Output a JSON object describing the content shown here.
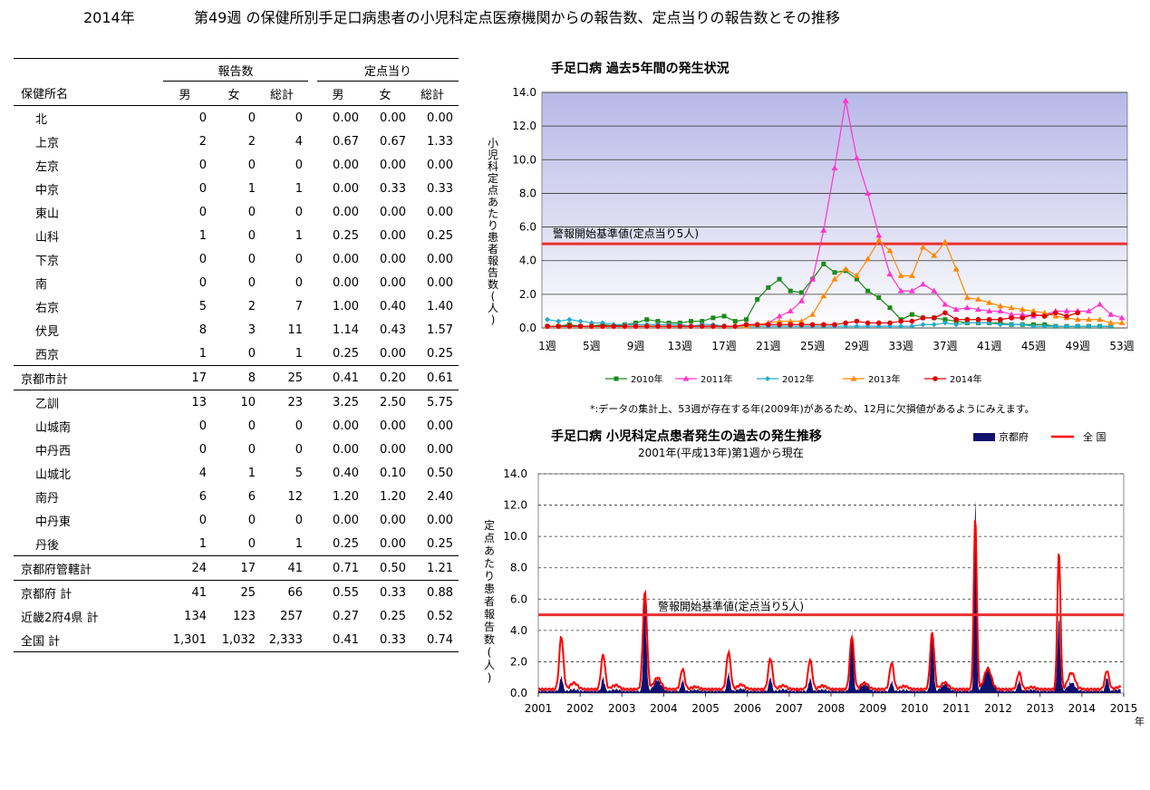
{
  "header": {
    "year": "2014年",
    "title": "第49週 の保健所別手足口病患者の小児科定点医療機関からの報告数、定点当りの報告数とその推移"
  },
  "table": {
    "group_reports": "報告数",
    "group_per_site": "定点当り",
    "col_name": "保健所名",
    "col_male": "男",
    "col_female": "女",
    "col_total": "総計",
    "rows": [
      {
        "name": "北",
        "m": "0",
        "f": "0",
        "t": "0",
        "pm": "0.00",
        "pf": "0.00",
        "pt": "0.00",
        "indent": true
      },
      {
        "name": "上京",
        "m": "2",
        "f": "2",
        "t": "4",
        "pm": "0.67",
        "pf": "0.67",
        "pt": "1.33",
        "indent": true
      },
      {
        "name": "左京",
        "m": "0",
        "f": "0",
        "t": "0",
        "pm": "0.00",
        "pf": "0.00",
        "pt": "0.00",
        "indent": true
      },
      {
        "name": "中京",
        "m": "0",
        "f": "1",
        "t": "1",
        "pm": "0.00",
        "pf": "0.33",
        "pt": "0.33",
        "indent": true
      },
      {
        "name": "東山",
        "m": "0",
        "f": "0",
        "t": "0",
        "pm": "0.00",
        "pf": "0.00",
        "pt": "0.00",
        "indent": true
      },
      {
        "name": "山科",
        "m": "1",
        "f": "0",
        "t": "1",
        "pm": "0.25",
        "pf": "0.00",
        "pt": "0.25",
        "indent": true
      },
      {
        "name": "下京",
        "m": "0",
        "f": "0",
        "t": "0",
        "pm": "0.00",
        "pf": "0.00",
        "pt": "0.00",
        "indent": true
      },
      {
        "name": "南",
        "m": "0",
        "f": "0",
        "t": "0",
        "pm": "0.00",
        "pf": "0.00",
        "pt": "0.00",
        "indent": true
      },
      {
        "name": "右京",
        "m": "5",
        "f": "2",
        "t": "7",
        "pm": "1.00",
        "pf": "0.40",
        "pt": "1.40",
        "indent": true
      },
      {
        "name": "伏見",
        "m": "8",
        "f": "3",
        "t": "11",
        "pm": "1.14",
        "pf": "0.43",
        "pt": "1.57",
        "indent": true
      },
      {
        "name": "西京",
        "m": "1",
        "f": "0",
        "t": "1",
        "pm": "0.25",
        "pf": "0.00",
        "pt": "0.25",
        "indent": true
      },
      {
        "name": "京都市計",
        "m": "17",
        "f": "8",
        "t": "25",
        "pm": "0.41",
        "pf": "0.20",
        "pt": "0.61",
        "indent": false,
        "line_above": true,
        "line_below": true
      },
      {
        "name": "乙訓",
        "m": "13",
        "f": "10",
        "t": "23",
        "pm": "3.25",
        "pf": "2.50",
        "pt": "5.75",
        "indent": true
      },
      {
        "name": "山城南",
        "m": "0",
        "f": "0",
        "t": "0",
        "pm": "0.00",
        "pf": "0.00",
        "pt": "0.00",
        "indent": true
      },
      {
        "name": "中丹西",
        "m": "0",
        "f": "0",
        "t": "0",
        "pm": "0.00",
        "pf": "0.00",
        "pt": "0.00",
        "indent": true
      },
      {
        "name": "山城北",
        "m": "4",
        "f": "1",
        "t": "5",
        "pm": "0.40",
        "pf": "0.10",
        "pt": "0.50",
        "indent": true
      },
      {
        "name": "南丹",
        "m": "6",
        "f": "6",
        "t": "12",
        "pm": "1.20",
        "pf": "1.20",
        "pt": "2.40",
        "indent": true
      },
      {
        "name": "中丹東",
        "m": "0",
        "f": "0",
        "t": "0",
        "pm": "0.00",
        "pf": "0.00",
        "pt": "0.00",
        "indent": true
      },
      {
        "name": "丹後",
        "m": "1",
        "f": "0",
        "t": "1",
        "pm": "0.25",
        "pf": "0.00",
        "pt": "0.25",
        "indent": true
      },
      {
        "name": "京都府管轄計",
        "m": "24",
        "f": "17",
        "t": "41",
        "pm": "0.71",
        "pf": "0.50",
        "pt": "1.21",
        "indent": false,
        "line_above": true,
        "line_below": true
      },
      {
        "name": "京都府 計",
        "m": "41",
        "f": "25",
        "t": "66",
        "pm": "0.55",
        "pf": "0.33",
        "pt": "0.88",
        "indent": false
      },
      {
        "name": "近畿2府4県 計",
        "m": "134",
        "f": "123",
        "t": "257",
        "pm": "0.27",
        "pf": "0.25",
        "pt": "0.52",
        "indent": false
      },
      {
        "name": "全国 計",
        "m": "1,301",
        "f": "1,032",
        "t": "2,333",
        "pm": "0.41",
        "pf": "0.33",
        "pt": "0.74",
        "indent": false,
        "line_below": true
      }
    ]
  },
  "colors": {
    "y2010": "#1a8a1a",
    "y2011": "#ff33cc",
    "y2012": "#22aacc",
    "y2013": "#ff8800",
    "y2014": "#dd0000",
    "alert": "#e83030",
    "kyoto": "#10106e",
    "national": "#ff0000"
  },
  "chart_data": [
    {
      "type": "line",
      "title": "手足口病 過去5年間の発生状況",
      "ylabel": "小児科定点あたり患者報告数(人)",
      "ylim": [
        0,
        14
      ],
      "y_ticks": [
        "0.0",
        "2.0",
        "4.0",
        "6.0",
        "8.0",
        "10.0",
        "12.0",
        "14.0"
      ],
      "x_ticks": [
        "1週",
        "5週",
        "9週",
        "13週",
        "17週",
        "21週",
        "25週",
        "29週",
        "33週",
        "37週",
        "41週",
        "45週",
        "49週",
        "53週"
      ],
      "x_tick_weeks": [
        1,
        5,
        9,
        13,
        17,
        21,
        25,
        29,
        33,
        37,
        41,
        45,
        49,
        53
      ],
      "threshold": {
        "value": 5,
        "label": "警報開始基準値(定点当り5人)"
      },
      "footnote": "*:データの集計上、53週が存在する年(2009年)があるため、12月に欠損値があるようにみえます。",
      "series": [
        {
          "name": "2010年",
          "values": [
            0.1,
            0.1,
            0.2,
            0.1,
            0.1,
            0.2,
            0.1,
            0.2,
            0.3,
            0.5,
            0.4,
            0.3,
            0.3,
            0.4,
            0.4,
            0.6,
            0.7,
            0.4,
            0.5,
            1.7,
            2.4,
            2.9,
            2.2,
            2.1,
            2.9,
            3.8,
            3.3,
            3.4,
            2.9,
            2.2,
            1.8,
            1.2,
            0.5,
            0.8,
            0.6,
            0.6,
            0.5,
            0.4,
            0.3,
            0.3,
            0.3,
            0.3,
            0.2,
            0.2,
            0.2,
            0.2,
            0.1,
            0.1,
            0.1,
            0.1,
            0.1,
            0.1
          ]
        },
        {
          "name": "2011年",
          "values": [
            0.1,
            0.1,
            0.1,
            0.1,
            0.1,
            0.1,
            0.1,
            0.1,
            0.1,
            0.1,
            0.1,
            0.1,
            0.1,
            0.1,
            0.1,
            0.1,
            0.1,
            0.1,
            0.2,
            0.2,
            0.3,
            0.7,
            1.0,
            1.6,
            2.9,
            5.8,
            9.5,
            13.5,
            10.1,
            8.0,
            5.5,
            3.2,
            2.2,
            2.2,
            2.6,
            2.2,
            1.4,
            1.1,
            1.2,
            1.1,
            1.0,
            1.0,
            0.8,
            0.8,
            0.7,
            0.8,
            1.0,
            1.0,
            1.0,
            1.0,
            1.4,
            0.8,
            0.6
          ]
        },
        {
          "name": "2012年",
          "values": [
            0.5,
            0.4,
            0.5,
            0.4,
            0.3,
            0.3,
            0.2,
            0.2,
            0.2,
            0.2,
            0.2,
            0.2,
            0.2,
            0.1,
            0.2,
            0.2,
            0.1,
            0.1,
            0.1,
            0.1,
            0.1,
            0.1,
            0.1,
            0.1,
            0.1,
            0.1,
            0.1,
            0.1,
            0.1,
            0.1,
            0.1,
            0.1,
            0.1,
            0.1,
            0.2,
            0.2,
            0.3,
            0.2,
            0.3,
            0.3,
            0.3,
            0.2,
            0.2,
            0.2,
            0.1,
            0.1,
            0.1,
            0.1,
            0.1,
            0.1,
            0.1,
            0.1
          ]
        },
        {
          "name": "2013年",
          "values": [
            0.1,
            0.1,
            0.1,
            0.1,
            0.1,
            0.1,
            0.1,
            0.1,
            0.1,
            0.1,
            0.1,
            0.1,
            0.1,
            0.1,
            0.1,
            0.1,
            0.1,
            0.1,
            0.1,
            0.2,
            0.3,
            0.4,
            0.4,
            0.4,
            0.8,
            1.9,
            2.9,
            3.5,
            3.1,
            4.1,
            5.2,
            4.6,
            3.1,
            3.1,
            4.8,
            4.3,
            5.1,
            3.5,
            1.8,
            1.7,
            1.5,
            1.3,
            1.2,
            1.1,
            1.0,
            0.9,
            0.7,
            0.6,
            0.5,
            0.5,
            0.5,
            0.3,
            0.3
          ]
        },
        {
          "name": "2014年",
          "values": [
            0.1,
            0.1,
            0.1,
            0.1,
            0.1,
            0.1,
            0.1,
            0.1,
            0.1,
            0.1,
            0.1,
            0.1,
            0.1,
            0.1,
            0.1,
            0.1,
            0.1,
            0.1,
            0.2,
            0.2,
            0.2,
            0.2,
            0.2,
            0.2,
            0.2,
            0.2,
            0.2,
            0.3,
            0.4,
            0.3,
            0.3,
            0.3,
            0.4,
            0.4,
            0.6,
            0.6,
            0.9,
            0.5,
            0.5,
            0.5,
            0.5,
            0.5,
            0.6,
            0.6,
            0.8,
            0.7,
            0.9,
            0.7,
            0.9
          ]
        }
      ]
    },
    {
      "type": "area",
      "title": "手足口病 小児科定点患者発生の過去の発生推移",
      "subtitle": "2001年(平成13年)第1週から現在",
      "ylabel": "定点あたり患者報告数(人)",
      "xlabel": "年",
      "ylim": [
        0,
        14
      ],
      "xlim": [
        2001,
        2015
      ],
      "y_ticks": [
        "0.0",
        "2.0",
        "4.0",
        "6.0",
        "8.0",
        "10.0",
        "12.0",
        "14.0"
      ],
      "x_ticks": [
        "2001",
        "2002",
        "2003",
        "2004",
        "2005",
        "2006",
        "2007",
        "2008",
        "2009",
        "2010",
        "2011",
        "2012",
        "2013",
        "2014",
        "2015"
      ],
      "threshold": {
        "value": 5,
        "label": "警報開始基準値(定点当り5人)"
      },
      "legend": [
        "京都府",
        "全 国"
      ],
      "kyoto_peaks": [
        [
          2001.55,
          1.1
        ],
        [
          2002.55,
          1.0
        ],
        [
          2003.55,
          6.6
        ],
        [
          2004.45,
          0.8
        ],
        [
          2005.55,
          1.3
        ],
        [
          2006.55,
          1.0
        ],
        [
          2007.5,
          0.9
        ],
        [
          2008.5,
          4.0
        ],
        [
          2009.45,
          0.7
        ],
        [
          2010.42,
          4.0
        ],
        [
          2011.45,
          13.8
        ],
        [
          2012.5,
          0.8
        ],
        [
          2013.45,
          5.0
        ],
        [
          2014.6,
          1.0
        ]
      ],
      "national_peaks": [
        [
          2001.55,
          3.4
        ],
        [
          2002.55,
          2.2
        ],
        [
          2003.55,
          6.2
        ],
        [
          2004.45,
          1.3
        ],
        [
          2005.55,
          2.4
        ],
        [
          2006.55,
          2.0
        ],
        [
          2007.5,
          1.9
        ],
        [
          2008.5,
          3.4
        ],
        [
          2009.45,
          1.7
        ],
        [
          2010.42,
          3.6
        ],
        [
          2011.45,
          11.0
        ],
        [
          2012.5,
          1.1
        ],
        [
          2013.45,
          8.8
        ],
        [
          2014.6,
          1.2
        ]
      ]
    }
  ]
}
